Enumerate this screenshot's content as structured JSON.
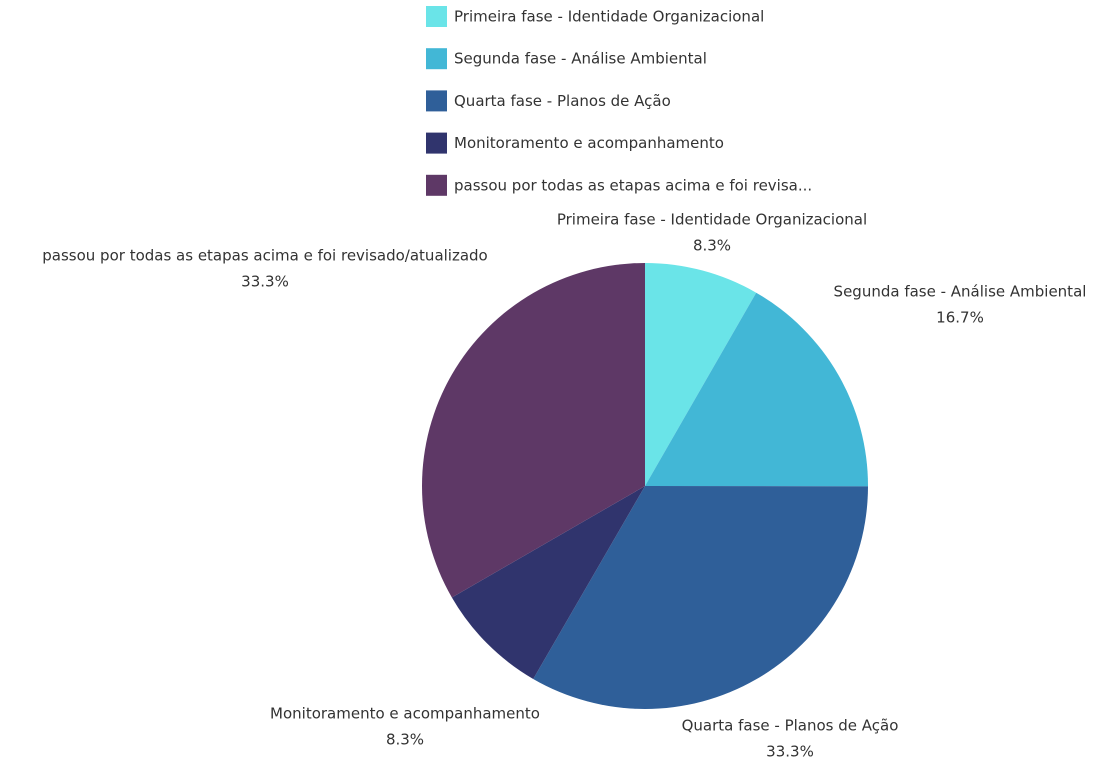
{
  "chart_data": {
    "type": "pie",
    "categories": [
      "Primeira fase - Identidade Organizacional",
      "Segunda fase - Análise Ambiental",
      "Quarta fase - Planos de Ação",
      "Monitoramento e acompanhamento",
      "passou por todas as etapas acima e foi revisado/atualizado"
    ],
    "legend_labels": [
      "Primeira fase - Identidade Organizacional",
      "Segunda fase - Análise Ambiental",
      "Quarta fase - Planos de Ação",
      "Monitoramento e acompanhamento",
      "passou por todas as etapas acima e foi revisa..."
    ],
    "values": [
      8.3,
      16.7,
      33.3,
      8.3,
      33.3
    ],
    "value_labels": [
      "8.3%",
      "16.7%",
      "33.3%",
      "8.3%",
      "33.3%"
    ],
    "colors": [
      "#6ae4e8",
      "#42b7d6",
      "#2f5f99",
      "#30346d",
      "#5e3866"
    ]
  }
}
